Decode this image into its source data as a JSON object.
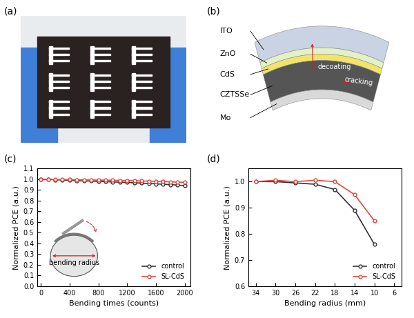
{
  "panel_labels": [
    "(a)",
    "(b)",
    "(c)",
    "(d)"
  ],
  "diagram": {
    "layers": [
      "ITO",
      "ZnO",
      "CdS",
      "CZTSSe",
      "Mo"
    ],
    "annotations": [
      "decoating",
      "cracking"
    ]
  },
  "chart_data": [
    {
      "type": "line",
      "x_label": "Bending times (counts)",
      "y_label": "Normalized PCE (a.u.)",
      "x": [
        0,
        100,
        200,
        300,
        400,
        500,
        600,
        700,
        800,
        900,
        1000,
        1100,
        1200,
        1300,
        1400,
        1500,
        1600,
        1700,
        1800,
        1900,
        2000
      ],
      "xlim": [
        -50,
        2080
      ],
      "xticks": [
        0,
        400,
        800,
        1200,
        1600,
        2000
      ],
      "ylim": [
        0.0,
        1.1
      ],
      "yticks": [
        0.0,
        0.1,
        0.2,
        0.3,
        0.4,
        0.5,
        0.6,
        0.7,
        0.8,
        0.9,
        1.0,
        1.1
      ],
      "legend": "lower right",
      "annotations": [
        "bending radius"
      ],
      "series": [
        {
          "name": "control",
          "color": "#333333",
          "marker": "o",
          "values": [
            1.0,
            0.998,
            0.995,
            0.993,
            0.99,
            0.988,
            0.985,
            0.983,
            0.98,
            0.978,
            0.975,
            0.972,
            0.97,
            0.967,
            0.964,
            0.96,
            0.957,
            0.953,
            0.95,
            0.945,
            0.94
          ]
        },
        {
          "name": "SL-CdS",
          "color": "#e8453c",
          "marker": "o",
          "values": [
            1.0,
            1.0,
            0.998,
            0.997,
            0.996,
            0.995,
            0.994,
            0.993,
            0.992,
            0.991,
            0.99,
            0.989,
            0.987,
            0.986,
            0.984,
            0.982,
            0.98,
            0.978,
            0.976,
            0.973,
            0.97
          ]
        }
      ]
    },
    {
      "type": "line",
      "x_label": "Bending radius (mm)",
      "y_label": "Normalized PCE (a.u.)",
      "x": [
        34,
        30,
        26,
        22,
        18,
        14,
        10
      ],
      "xlim": [
        35.5,
        4.5
      ],
      "xticks": [
        34,
        30,
        26,
        22,
        18,
        14,
        10,
        6
      ],
      "ylim": [
        0.6,
        1.05
      ],
      "yticks": [
        0.6,
        0.7,
        0.8,
        0.9,
        1.0
      ],
      "legend": "lower right",
      "series": [
        {
          "name": "control",
          "color": "#333333",
          "marker": "o",
          "values": [
            1.0,
            1.0,
            0.995,
            0.99,
            0.97,
            0.89,
            0.76
          ]
        },
        {
          "name": "SL-CdS",
          "color": "#e8453c",
          "marker": "o",
          "values": [
            1.0,
            1.005,
            1.0,
            1.005,
            1.0,
            0.95,
            0.85
          ]
        }
      ]
    }
  ]
}
